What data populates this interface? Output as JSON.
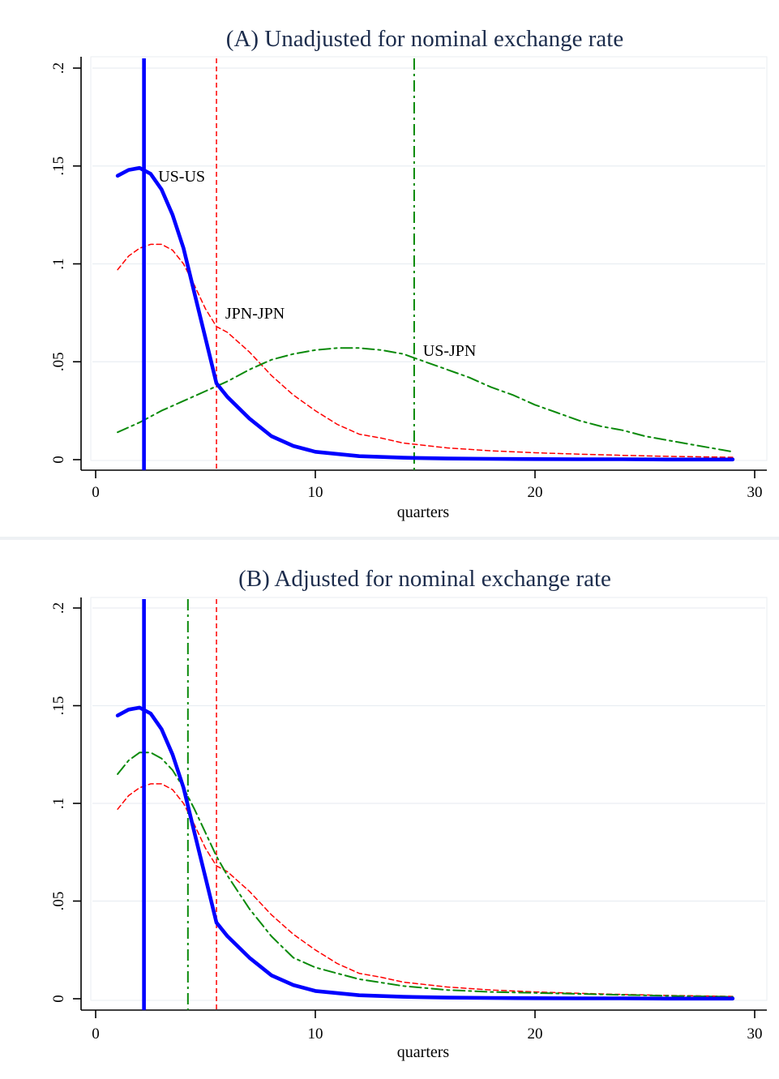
{
  "chart_data": [
    {
      "type": "line",
      "title": "(A) Unadjusted for nominal exchange rate",
      "xlabel": "quarters",
      "ylabel": "",
      "xlim": [
        0,
        30
      ],
      "ylim": [
        0,
        0.2
      ],
      "x_ticks": [
        0,
        10,
        20,
        30
      ],
      "x_tick_labels": [
        "0",
        "10",
        "20",
        "30"
      ],
      "y_ticks": [
        0,
        0.05,
        0.1,
        0.15,
        0.2
      ],
      "y_tick_labels": [
        "0",
        ".05",
        ".1",
        ".15",
        ".2"
      ],
      "grid": true,
      "series": [
        {
          "name": "US-US",
          "color": "#0000ff",
          "style": "solid",
          "x": [
            1,
            1.5,
            2,
            2.5,
            3,
            3.5,
            4,
            4.5,
            5,
            5.5,
            6,
            7,
            8,
            9,
            10,
            12,
            14,
            16,
            18,
            20,
            22,
            24,
            26,
            29
          ],
          "y": [
            0.145,
            0.148,
            0.149,
            0.146,
            0.138,
            0.125,
            0.108,
            0.085,
            0.062,
            0.039,
            0.032,
            0.021,
            0.012,
            0.007,
            0.004,
            0.0018,
            0.001,
            0.0006,
            0.0004,
            0.0003,
            0.0002,
            0.0002,
            0.0001,
            0.0001
          ],
          "vline": 2.2
        },
        {
          "name": "JPN-JPN",
          "color": "#ff0000",
          "style": "dashed",
          "x": [
            1,
            1.5,
            2,
            2.5,
            3,
            3.5,
            4,
            4.5,
            5,
            5.5,
            6,
            7,
            8,
            9,
            10,
            11,
            12,
            13,
            14,
            16,
            18,
            20,
            22,
            24,
            26,
            29
          ],
          "y": [
            0.097,
            0.104,
            0.108,
            0.11,
            0.11,
            0.107,
            0.1,
            0.089,
            0.077,
            0.068,
            0.065,
            0.055,
            0.043,
            0.033,
            0.025,
            0.018,
            0.013,
            0.011,
            0.0085,
            0.006,
            0.0045,
            0.0035,
            0.0028,
            0.0022,
            0.0017,
            0.0012
          ],
          "vline": 5.5
        },
        {
          "name": "US-JPN",
          "color": "#0a8a0a",
          "style": "dash-dot",
          "x": [
            1,
            2,
            3,
            4,
            5,
            6,
            7,
            8,
            9,
            10,
            11,
            12,
            13,
            14,
            15,
            16,
            17,
            18,
            19,
            20,
            21,
            22,
            23,
            24,
            25,
            26,
            27,
            28,
            29
          ],
          "y": [
            0.014,
            0.019,
            0.025,
            0.03,
            0.035,
            0.04,
            0.046,
            0.051,
            0.054,
            0.056,
            0.057,
            0.057,
            0.056,
            0.054,
            0.05,
            0.046,
            0.042,
            0.037,
            0.033,
            0.028,
            0.024,
            0.02,
            0.017,
            0.015,
            0.012,
            0.01,
            0.008,
            0.006,
            0.004
          ],
          "vline": 14.5
        }
      ],
      "annotations": [
        {
          "text": "US-US",
          "x": 2.85,
          "y": 0.142
        },
        {
          "text": "JPN-JPN",
          "x": 5.9,
          "y": 0.072
        },
        {
          "text": "US-JPN",
          "x": 14.9,
          "y": 0.053
        }
      ]
    },
    {
      "type": "line",
      "title": "(B) Adjusted for nominal exchange rate",
      "xlabel": "quarters",
      "ylabel": "",
      "xlim": [
        0,
        30
      ],
      "ylim": [
        0,
        0.2
      ],
      "x_ticks": [
        0,
        10,
        20,
        30
      ],
      "x_tick_labels": [
        "0",
        "10",
        "20",
        "30"
      ],
      "y_ticks": [
        0,
        0.05,
        0.1,
        0.15,
        0.2
      ],
      "y_tick_labels": [
        "0",
        ".05",
        ".1",
        ".15",
        ".2"
      ],
      "grid": true,
      "series": [
        {
          "name": "US-US",
          "color": "#0000ff",
          "style": "solid",
          "x": [
            1,
            1.5,
            2,
            2.5,
            3,
            3.5,
            4,
            4.5,
            5,
            5.5,
            6,
            7,
            8,
            9,
            10,
            12,
            14,
            16,
            18,
            20,
            22,
            24,
            26,
            29
          ],
          "y": [
            0.145,
            0.148,
            0.149,
            0.146,
            0.138,
            0.125,
            0.108,
            0.085,
            0.062,
            0.039,
            0.032,
            0.021,
            0.012,
            0.007,
            0.004,
            0.0018,
            0.001,
            0.0006,
            0.0004,
            0.0003,
            0.0002,
            0.0002,
            0.0001,
            0.0001
          ],
          "vline": 2.2
        },
        {
          "name": "JPN-JPN",
          "color": "#ff0000",
          "style": "dashed",
          "x": [
            1,
            1.5,
            2,
            2.5,
            3,
            3.5,
            4,
            4.5,
            5,
            5.5,
            6,
            7,
            8,
            9,
            10,
            11,
            12,
            13,
            14,
            16,
            18,
            20,
            22,
            24,
            26,
            29
          ],
          "y": [
            0.097,
            0.104,
            0.108,
            0.11,
            0.11,
            0.107,
            0.1,
            0.089,
            0.077,
            0.068,
            0.065,
            0.055,
            0.043,
            0.033,
            0.025,
            0.018,
            0.013,
            0.011,
            0.0085,
            0.006,
            0.0045,
            0.0035,
            0.0028,
            0.0022,
            0.0017,
            0.0012
          ],
          "vline": 5.5
        },
        {
          "name": "US-JPN",
          "color": "#0a8a0a",
          "style": "dash-dot",
          "x": [
            1,
            1.5,
            2,
            2.5,
            3,
            3.5,
            4,
            4.5,
            5,
            5.5,
            6,
            7,
            8,
            9,
            10,
            11,
            12,
            14,
            16,
            18,
            20,
            22,
            24,
            26,
            29
          ],
          "y": [
            0.115,
            0.122,
            0.126,
            0.126,
            0.123,
            0.117,
            0.108,
            0.097,
            0.085,
            0.073,
            0.063,
            0.046,
            0.032,
            0.021,
            0.016,
            0.013,
            0.01,
            0.0065,
            0.0045,
            0.0035,
            0.003,
            0.0025,
            0.002,
            0.0015,
            0.001
          ],
          "vline": 4.2
        }
      ],
      "annotations": []
    }
  ]
}
